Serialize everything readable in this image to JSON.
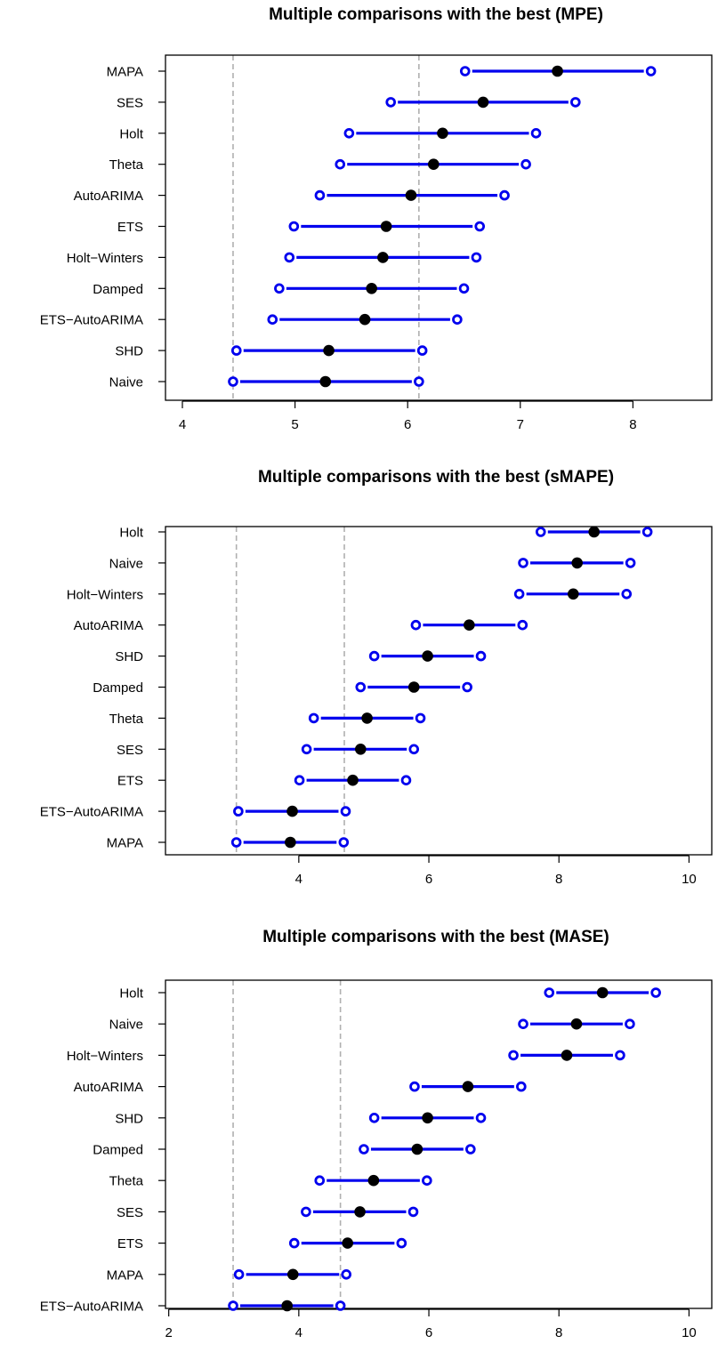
{
  "chart_data": [
    {
      "type": "scatter",
      "title": "Multiple comparisons with the best (MPE)",
      "xlim": [
        3.85,
        8.7
      ],
      "xticks": [
        4,
        5,
        6,
        7,
        8
      ],
      "grid": false,
      "reference_lines": [
        4.45,
        6.1
      ],
      "categories": [
        "MAPA",
        "SES",
        "Holt",
        "Theta",
        "AutoARIMA",
        "ETS",
        "Holt−Winters",
        "Damped",
        "ETS−AutoARIMA",
        "SHD",
        "Naive"
      ],
      "mean": [
        7.33,
        6.67,
        6.31,
        6.23,
        6.03,
        5.81,
        5.78,
        5.68,
        5.62,
        5.3,
        5.27
      ],
      "lower": [
        6.51,
        5.85,
        5.48,
        5.4,
        5.22,
        4.99,
        4.95,
        4.86,
        4.8,
        4.48,
        4.45
      ],
      "upper": [
        8.16,
        7.49,
        7.14,
        7.05,
        6.86,
        6.64,
        6.61,
        6.5,
        6.44,
        6.13,
        6.1
      ],
      "colors": {
        "interval": "#0000ee",
        "mean": "#000000",
        "reference": "#b0b0b0"
      }
    },
    {
      "type": "scatter",
      "title": "Multiple comparisons with the best (sMAPE)",
      "xlim": [
        1.95,
        10.35
      ],
      "xticks": [
        4,
        6,
        8,
        10
      ],
      "grid": false,
      "reference_lines": [
        3.04,
        4.7
      ],
      "categories": [
        "Holt",
        "Naive",
        "Holt−Winters",
        "AutoARIMA",
        "SHD",
        "Damped",
        "Theta",
        "SES",
        "ETS",
        "ETS−AutoARIMA",
        "MAPA"
      ],
      "mean": [
        8.54,
        8.28,
        8.22,
        6.62,
        5.98,
        5.77,
        5.05,
        4.95,
        4.83,
        3.9,
        3.87
      ],
      "lower": [
        7.72,
        7.45,
        7.39,
        5.8,
        5.16,
        4.95,
        4.23,
        4.12,
        4.01,
        3.07,
        3.04
      ],
      "upper": [
        9.36,
        9.1,
        9.04,
        7.44,
        6.8,
        6.59,
        5.87,
        5.77,
        5.65,
        4.72,
        4.69
      ],
      "colors": {
        "interval": "#0000ee",
        "mean": "#000000",
        "reference": "#b0b0b0"
      }
    },
    {
      "type": "scatter",
      "title": "Multiple comparisons with the best (MASE)",
      "xlim": [
        1.95,
        10.35
      ],
      "xticks": [
        2,
        4,
        6,
        8,
        10
      ],
      "grid": false,
      "reference_lines": [
        2.99,
        4.64
      ],
      "categories": [
        "Holt",
        "Naive",
        "Holt−Winters",
        "AutoARIMA",
        "SHD",
        "Damped",
        "Theta",
        "SES",
        "ETS",
        "MAPA",
        "ETS−AutoARIMA"
      ],
      "mean": [
        8.67,
        8.27,
        8.12,
        6.6,
        5.98,
        5.82,
        5.15,
        4.94,
        4.75,
        3.91,
        3.82
      ],
      "lower": [
        7.85,
        7.45,
        7.3,
        5.78,
        5.16,
        5.0,
        4.32,
        4.11,
        3.93,
        3.08,
        2.99
      ],
      "upper": [
        9.49,
        9.09,
        8.94,
        7.42,
        6.8,
        6.64,
        5.97,
        5.76,
        5.58,
        4.73,
        4.64
      ],
      "colors": {
        "interval": "#0000ee",
        "mean": "#000000",
        "reference": "#b0b0b0"
      }
    }
  ]
}
